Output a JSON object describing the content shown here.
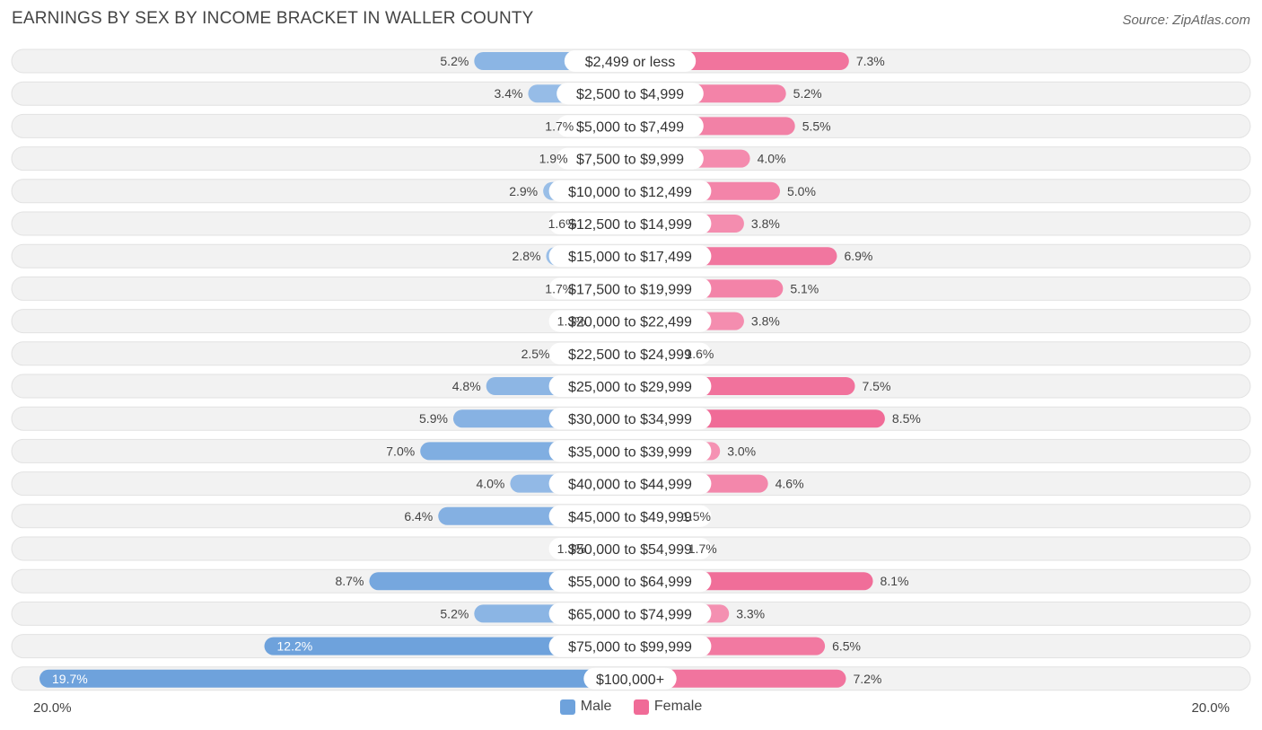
{
  "header": {
    "title": "EARNINGS BY SEX BY INCOME BRACKET IN WALLER COUNTY",
    "source": "Source: ZipAtlas.com"
  },
  "colors": {
    "male": "#6ea2dc",
    "male_light": "#aac9ec",
    "female": "#f06b97",
    "female_light": "#f7a8c2",
    "row_bg": "#f2f2f2",
    "row_border": "#e2e2e2"
  },
  "chart_data": {
    "type": "bar",
    "orientation": "horizontal-diverging",
    "title": "EARNINGS BY SEX BY INCOME BRACKET IN WALLER COUNTY",
    "categories": [
      "$2,499 or less",
      "$2,500 to $4,999",
      "$5,000 to $7,499",
      "$7,500 to $9,999",
      "$10,000 to $12,499",
      "$12,500 to $14,999",
      "$15,000 to $17,499",
      "$17,500 to $19,999",
      "$20,000 to $22,499",
      "$22,500 to $24,999",
      "$25,000 to $29,999",
      "$30,000 to $34,999",
      "$35,000 to $39,999",
      "$40,000 to $44,999",
      "$45,000 to $49,999",
      "$50,000 to $54,999",
      "$55,000 to $64,999",
      "$65,000 to $74,999",
      "$75,000 to $99,999",
      "$100,000+"
    ],
    "series": [
      {
        "name": "Male",
        "values": [
          5.2,
          3.4,
          1.7,
          1.9,
          2.9,
          1.6,
          2.8,
          1.7,
          1.3,
          2.5,
          4.8,
          5.9,
          7.0,
          4.0,
          6.4,
          1.3,
          8.7,
          5.2,
          12.2,
          19.7
        ],
        "labels": [
          "5.2%",
          "3.4%",
          "1.7%",
          "1.9%",
          "2.9%",
          "1.6%",
          "2.8%",
          "1.7%",
          "1.3%",
          "2.5%",
          "4.8%",
          "5.9%",
          "7.0%",
          "4.0%",
          "6.4%",
          "1.3%",
          "8.7%",
          "5.2%",
          "12.2%",
          "19.7%"
        ]
      },
      {
        "name": "Female",
        "values": [
          7.3,
          5.2,
          5.5,
          4.0,
          5.0,
          3.8,
          6.9,
          5.1,
          3.8,
          1.6,
          7.5,
          8.5,
          3.0,
          4.6,
          1.5,
          1.7,
          8.1,
          3.3,
          6.5,
          7.2
        ],
        "labels": [
          "7.3%",
          "5.2%",
          "5.5%",
          "4.0%",
          "5.0%",
          "3.8%",
          "6.9%",
          "5.1%",
          "3.8%",
          "1.6%",
          "7.5%",
          "8.5%",
          "3.0%",
          "4.6%",
          "1.5%",
          "1.7%",
          "8.1%",
          "3.3%",
          "6.5%",
          "7.2%"
        ]
      }
    ],
    "xlim": [
      -20,
      20
    ],
    "axis_labels": {
      "left": "20.0%",
      "right": "20.0%"
    },
    "legend": [
      "Male",
      "Female"
    ],
    "legend_position": "bottom-center"
  }
}
